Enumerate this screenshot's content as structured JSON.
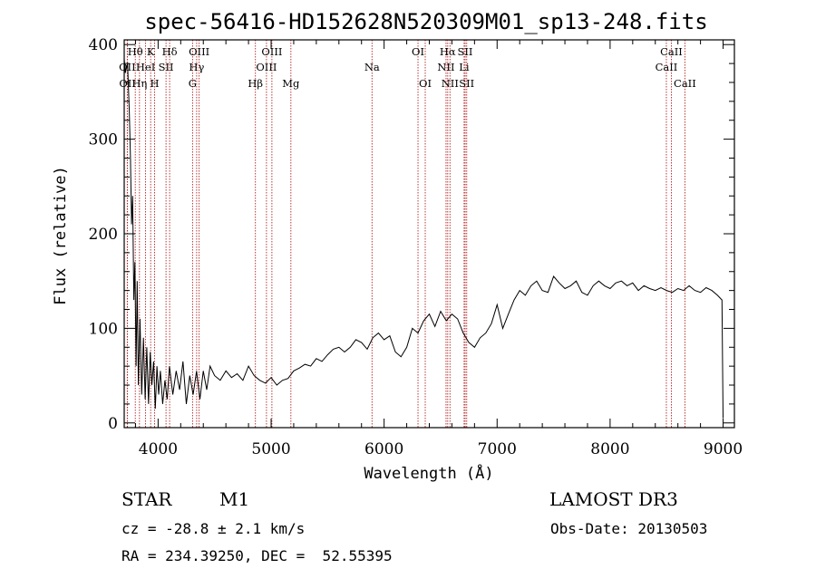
{
  "chart_data": {
    "type": "line",
    "title": "spec-56416-HD152628N520309M01_sp13-248.fits",
    "xlabel": "Wavelength (Å)",
    "ylabel": "Flux (relative)",
    "xlim": [
      3700,
      9100
    ],
    "ylim": [
      -5,
      405
    ],
    "xticks": [
      4000,
      5000,
      6000,
      7000,
      8000,
      9000
    ],
    "yticks": [
      0,
      100,
      200,
      300,
      400
    ],
    "grid": false,
    "line_color": "#000000",
    "marker_color": "#b22222",
    "spectral_lines": [
      {
        "label": "Hθ",
        "wavelength": 3798,
        "row": 0
      },
      {
        "label": "OII",
        "wavelength": 3727,
        "row": 1
      },
      {
        "label": "OII",
        "wavelength": 3729,
        "row": 2
      },
      {
        "label": "K",
        "wavelength": 3934,
        "row": 0
      },
      {
        "label": "HeI",
        "wavelength": 3889,
        "row": 1
      },
      {
        "label": "Hη",
        "wavelength": 3835,
        "row": 2
      },
      {
        "label": "SII",
        "wavelength": 4070,
        "row": 1
      },
      {
        "label": "H",
        "wavelength": 3969,
        "row": 2
      },
      {
        "label": "Hδ",
        "wavelength": 4102,
        "row": 0
      },
      {
        "label": "OIII",
        "wavelength": 4363,
        "row": 0
      },
      {
        "label": "Hγ",
        "wavelength": 4341,
        "row": 1
      },
      {
        "label": "G",
        "wavelength": 4305,
        "row": 2
      },
      {
        "label": "OIII",
        "wavelength": 5007,
        "row": 0
      },
      {
        "label": "OIII",
        "wavelength": 4959,
        "row": 1
      },
      {
        "label": "Hβ",
        "wavelength": 4861,
        "row": 2
      },
      {
        "label": "Mg",
        "wavelength": 5175,
        "row": 2
      },
      {
        "label": "Na",
        "wavelength": 5893,
        "row": 1
      },
      {
        "label": "OI",
        "wavelength": 6300,
        "row": 0
      },
      {
        "label": "OI",
        "wavelength": 6364,
        "row": 2
      },
      {
        "label": "Hα",
        "wavelength": 6563,
        "row": 0
      },
      {
        "label": "SII",
        "wavelength": 6717,
        "row": 0
      },
      {
        "label": "NII",
        "wavelength": 6548,
        "row": 1
      },
      {
        "label": "Li",
        "wavelength": 6708,
        "row": 1
      },
      {
        "label": "NII",
        "wavelength": 6583,
        "row": 2
      },
      {
        "label": "SII",
        "wavelength": 6731,
        "row": 2
      },
      {
        "label": "CaII",
        "wavelength": 8542,
        "row": 0
      },
      {
        "label": "CaII",
        "wavelength": 8498,
        "row": 1
      },
      {
        "label": "CaII",
        "wavelength": 8662,
        "row": 2
      }
    ],
    "series": [
      {
        "x": [
          3700,
          3710,
          3730,
          3745,
          3755,
          3765,
          3775,
          3785,
          3795,
          3805,
          3815,
          3825,
          3840,
          3855,
          3870,
          3885,
          3900,
          3915,
          3930,
          3945,
          3960,
          3975,
          3990,
          4005,
          4020,
          4040,
          4060,
          4080,
          4100,
          4130,
          4160,
          4190,
          4220,
          4250,
          4280,
          4310,
          4340,
          4370,
          4400,
          4430,
          4460,
          4500,
          4550,
          4600,
          4650,
          4700,
          4750,
          4800,
          4850,
          4900,
          4950,
          5000,
          5050,
          5100,
          5150,
          5200,
          5250,
          5300,
          5350,
          5400,
          5450,
          5500,
          5550,
          5600,
          5650,
          5700,
          5750,
          5800,
          5850,
          5900,
          5950,
          6000,
          6050,
          6100,
          6150,
          6200,
          6250,
          6300,
          6350,
          6400,
          6450,
          6500,
          6550,
          6600,
          6650,
          6700,
          6750,
          6800,
          6850,
          6900,
          6950,
          7000,
          7050,
          7100,
          7150,
          7200,
          7250,
          7300,
          7350,
          7400,
          7450,
          7500,
          7550,
          7600,
          7650,
          7700,
          7750,
          7800,
          7850,
          7900,
          7950,
          8000,
          8050,
          8100,
          8150,
          8200,
          8250,
          8300,
          8350,
          8400,
          8450,
          8500,
          8550,
          8600,
          8650,
          8700,
          8750,
          8800,
          8850,
          8900,
          8950,
          8990,
          9000
        ],
        "y": [
          385,
          370,
          380,
          330,
          280,
          210,
          240,
          130,
          170,
          60,
          150,
          40,
          110,
          30,
          90,
          25,
          80,
          20,
          75,
          40,
          65,
          15,
          60,
          30,
          55,
          20,
          45,
          25,
          60,
          30,
          55,
          35,
          65,
          20,
          50,
          30,
          55,
          25,
          55,
          35,
          60,
          50,
          45,
          55,
          48,
          52,
          45,
          60,
          50,
          45,
          42,
          48,
          40,
          45,
          47,
          55,
          58,
          62,
          60,
          68,
          65,
          72,
          78,
          80,
          75,
          80,
          88,
          85,
          78,
          90,
          95,
          88,
          92,
          75,
          70,
          80,
          100,
          95,
          108,
          115,
          102,
          118,
          108,
          115,
          110,
          95,
          85,
          80,
          90,
          95,
          105,
          125,
          100,
          115,
          130,
          140,
          135,
          145,
          150,
          140,
          138,
          155,
          148,
          142,
          145,
          150,
          138,
          135,
          145,
          150,
          145,
          142,
          148,
          150,
          145,
          148,
          140,
          145,
          142,
          140,
          143,
          140,
          138,
          142,
          140,
          145,
          140,
          138,
          143,
          140,
          135,
          130,
          5
        ]
      }
    ]
  },
  "info": {
    "object_type": "STAR",
    "subclass": "M1",
    "survey": "LAMOST DR3",
    "cz": "cz = -28.8 ± 2.1 km/s",
    "obs_date": "Obs-Date: 20130503",
    "coords": "RA = 234.39250, DEC =  52.55395"
  }
}
